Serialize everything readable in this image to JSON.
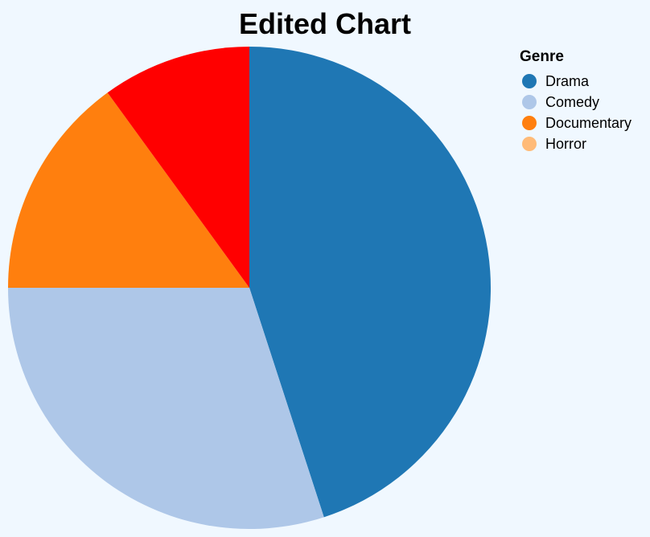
{
  "chart_data": {
    "type": "pie",
    "title": "Edited Chart",
    "legend_title": "Genre",
    "legend_position": "top-right",
    "categories": [
      "Drama",
      "Comedy",
      "Documentary",
      "Horror"
    ],
    "values": [
      45,
      30,
      15,
      10
    ],
    "legend_colors": [
      "#1f77b4",
      "#aec7e8",
      "#ff7f0e",
      "#ffbb78"
    ],
    "slice_colors": [
      "#1f77b4",
      "#aec7e8",
      "#ff7f0e",
      "#ff0000"
    ]
  }
}
